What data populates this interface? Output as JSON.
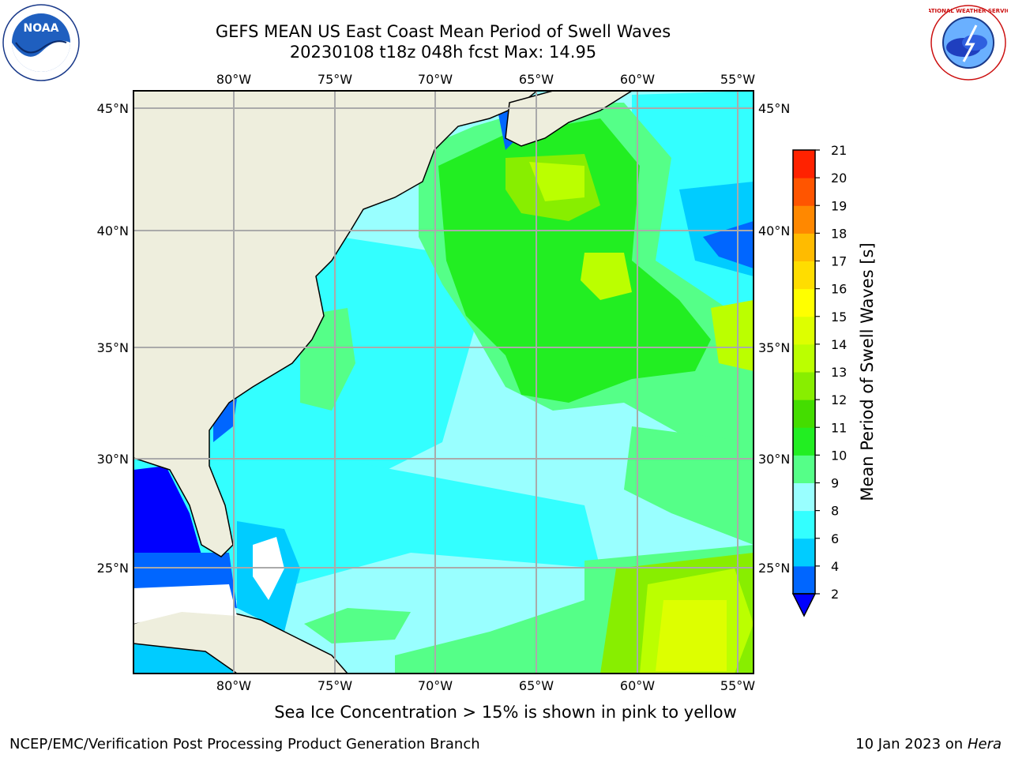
{
  "title": {
    "line1": "GEFS MEAN US East Coast Mean Period of Swell Waves",
    "line2": "20230108 t18z 048h fcst   Max: 14.95"
  },
  "map": {
    "lon_labels": [
      "80°W",
      "75°W",
      "70°W",
      "65°W",
      "60°W",
      "55°W"
    ],
    "lat_labels": [
      "45°N",
      "40°N",
      "35°N",
      "30°N",
      "25°N"
    ],
    "land_color": "#eeeedd",
    "grid_color": "#aaaaaa"
  },
  "colorbar": {
    "label": "Mean Period of Swell Waves [s]",
    "ticks": [
      "2",
      "4",
      "6",
      "8",
      "9",
      "10",
      "11",
      "12",
      "13",
      "14",
      "15",
      "16",
      "17",
      "18",
      "19",
      "20",
      "21"
    ],
    "colors": [
      "#0066ff",
      "#00ccff",
      "#33ffff",
      "#99ffff",
      "#55ff88",
      "#22ee22",
      "#44dd00",
      "#88ee00",
      "#bbff00",
      "#ddff00",
      "#ffff00",
      "#ffdd00",
      "#ffbb00",
      "#ff8800",
      "#ff5500",
      "#ff2200"
    ],
    "extend_color": "#0000ff"
  },
  "subtitle": "Sea Ice Concentration > 15% is shown in pink to yellow",
  "footer": {
    "credit": "NCEP/EMC/Verification Post Processing Product Generation Branch",
    "date_prefix": "10 Jan 2023 on ",
    "date_machine": "Hera"
  },
  "logos": {
    "noaa": "NOAA",
    "nws": "NATIONAL WEATHER SERVICE"
  }
}
